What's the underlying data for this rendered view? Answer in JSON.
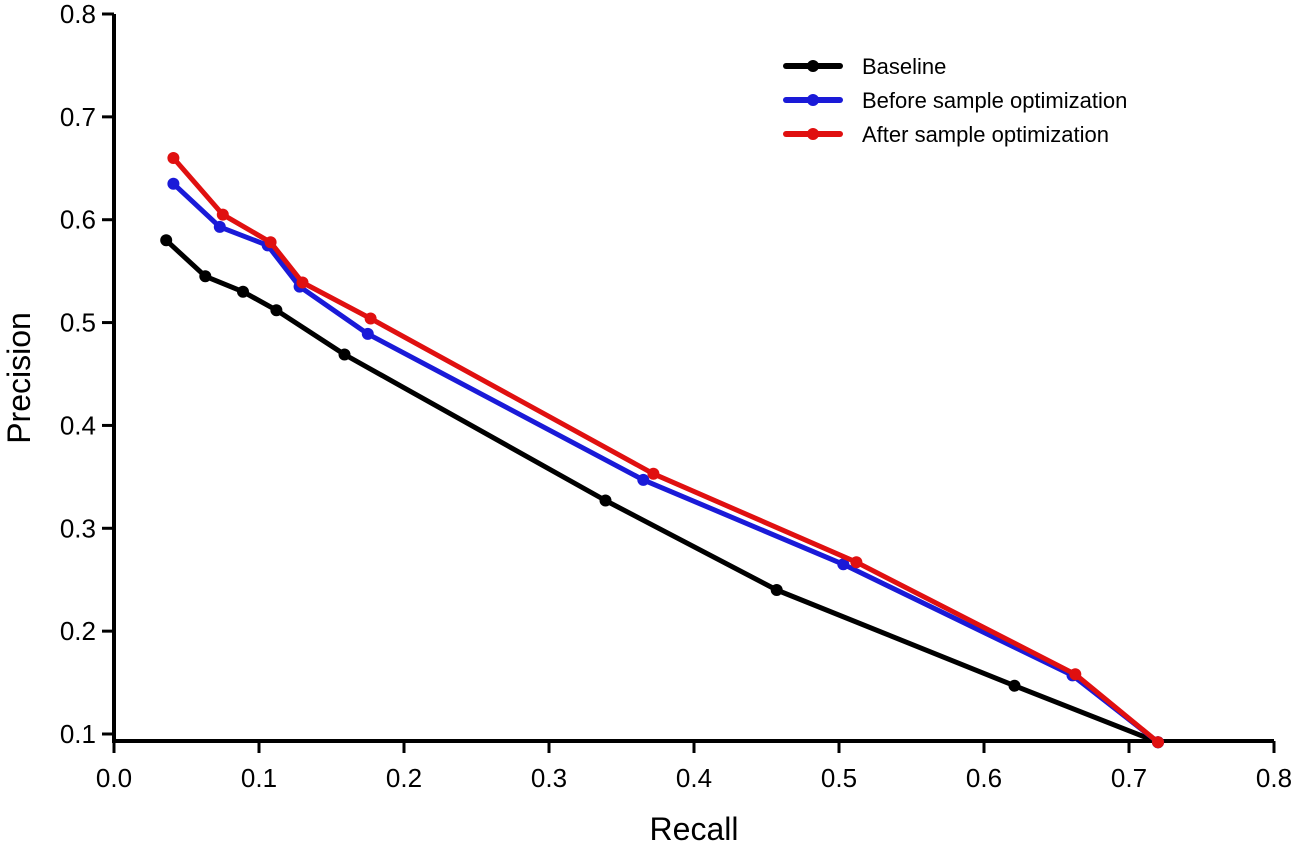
{
  "chart_data": {
    "type": "line",
    "title": "",
    "xlabel": "Recall",
    "ylabel": "Precision",
    "xlim": [
      0.0,
      0.8
    ],
    "ylim": [
      0.1,
      0.8
    ],
    "xticks": [
      0.0,
      0.1,
      0.2,
      0.3,
      0.4,
      0.5,
      0.6,
      0.7,
      0.8
    ],
    "xtick_labels": [
      "0.0",
      "0.1",
      "0.2",
      "0.3",
      "0.4",
      "0.5",
      "0.6",
      "0.7",
      "0.8"
    ],
    "yticks": [
      0.1,
      0.2,
      0.3,
      0.4,
      0.5,
      0.6,
      0.7,
      0.8
    ],
    "ytick_labels": [
      "0.1",
      "0.2",
      "0.3",
      "0.4",
      "0.5",
      "0.6",
      "0.7",
      "0.8"
    ],
    "grid": false,
    "legend_position": "top-right",
    "series": [
      {
        "name": "Baseline",
        "color": "#000000",
        "points": [
          [
            0.036,
            0.58
          ],
          [
            0.063,
            0.545
          ],
          [
            0.089,
            0.53
          ],
          [
            0.112,
            0.512
          ],
          [
            0.159,
            0.469
          ],
          [
            0.339,
            0.327
          ],
          [
            0.457,
            0.24
          ],
          [
            0.621,
            0.147
          ],
          [
            0.72,
            0.092
          ]
        ]
      },
      {
        "name": "Before sample optimization",
        "color": "#1a1ad8",
        "points": [
          [
            0.041,
            0.635
          ],
          [
            0.073,
            0.593
          ],
          [
            0.106,
            0.575
          ],
          [
            0.128,
            0.535
          ],
          [
            0.175,
            0.489
          ],
          [
            0.365,
            0.347
          ],
          [
            0.503,
            0.265
          ],
          [
            0.661,
            0.157
          ],
          [
            0.72,
            0.092
          ]
        ]
      },
      {
        "name": "After sample optimization",
        "color": "#e01010",
        "points": [
          [
            0.041,
            0.66
          ],
          [
            0.075,
            0.605
          ],
          [
            0.108,
            0.578
          ],
          [
            0.13,
            0.539
          ],
          [
            0.177,
            0.504
          ],
          [
            0.372,
            0.353
          ],
          [
            0.512,
            0.267
          ],
          [
            0.663,
            0.158
          ],
          [
            0.72,
            0.092
          ]
        ]
      }
    ]
  }
}
